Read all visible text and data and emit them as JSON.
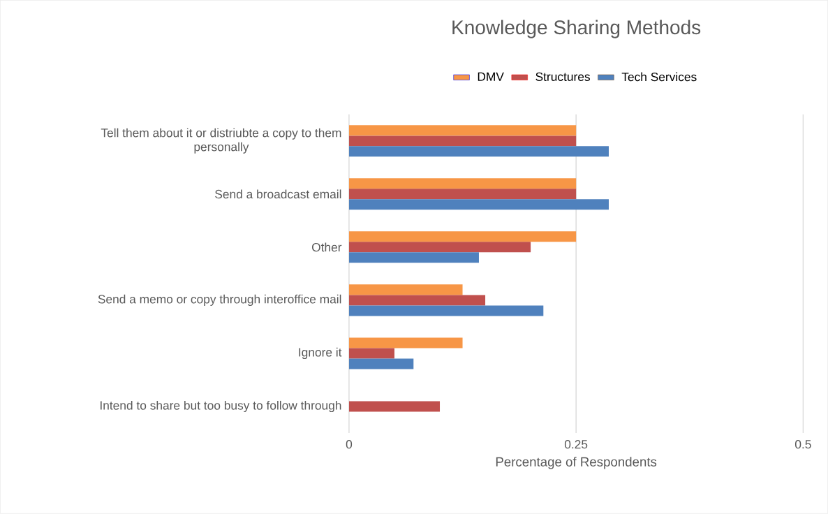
{
  "chart_data": {
    "type": "bar",
    "orientation": "horizontal",
    "title": "Knowledge Sharing Methods",
    "xlabel": "Percentage of Respondents",
    "categories": [
      "Tell them about it or distriubte a copy to them personally",
      "Send a broadcast email",
      "Other",
      "Send a memo or copy through interoffice mail",
      "Ignore it",
      "Intend to share but too busy to follow through"
    ],
    "series": [
      {
        "name": "DMV",
        "color": "#f79646",
        "values": [
          0.25,
          0.25,
          0.25,
          0.125,
          0.125,
          null
        ]
      },
      {
        "name": "Structures",
        "color": "#c0504d",
        "values": [
          0.25,
          0.25,
          0.2,
          0.15,
          0.05,
          0.1
        ]
      },
      {
        "name": "Tech Services",
        "color": "#4f81bd",
        "values": [
          0.286,
          0.286,
          0.143,
          0.214,
          0.071,
          null
        ]
      }
    ],
    "xlim": [
      0,
      0.5
    ],
    "xticks": [
      0,
      0.25,
      0.5
    ],
    "grid": "x",
    "legend": "top"
  }
}
